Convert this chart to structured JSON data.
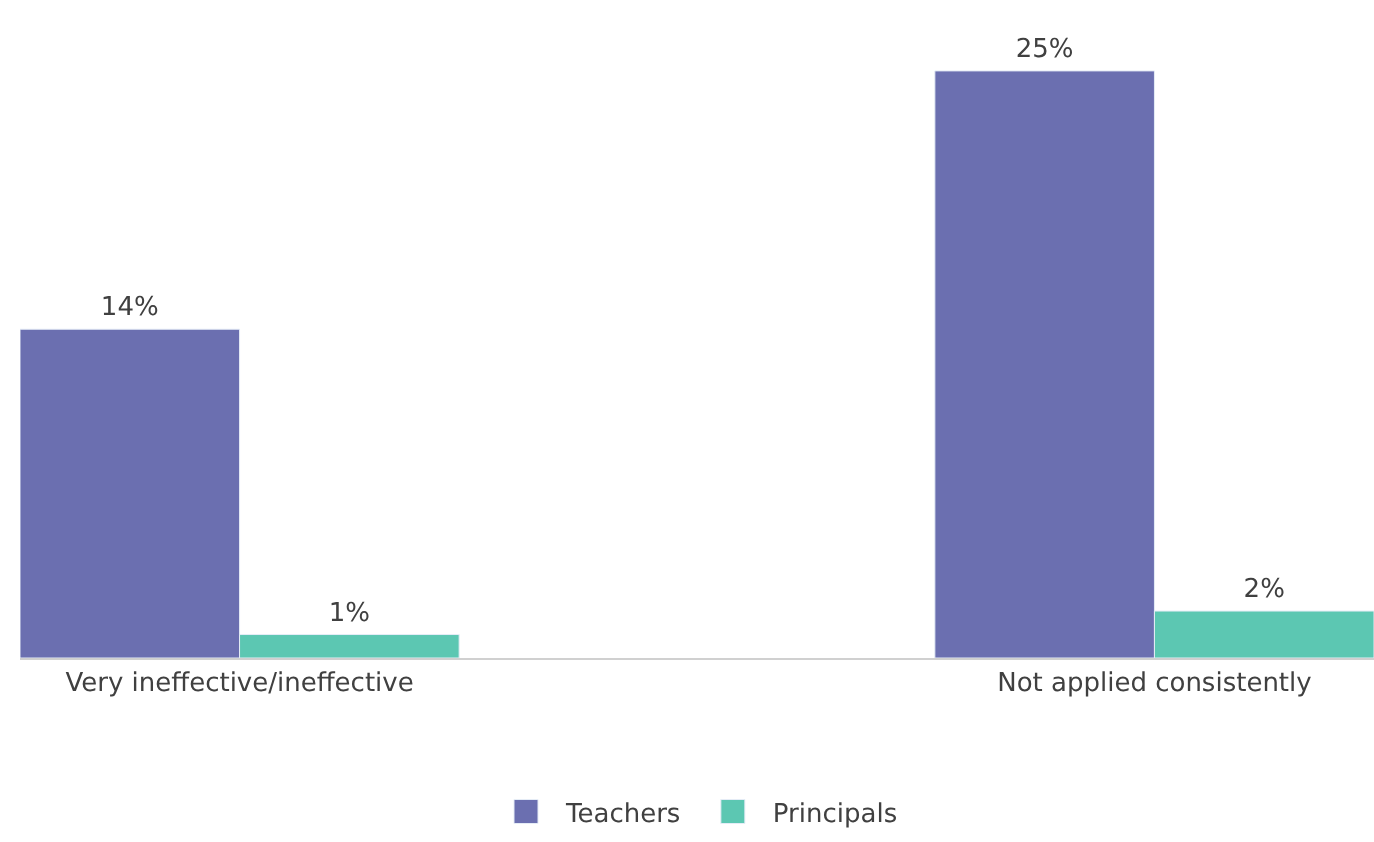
{
  "chart_data": {
    "type": "bar",
    "categories": [
      "Very ineffective/ineffective",
      "Not applied consistently"
    ],
    "series": [
      {
        "name": "Teachers",
        "color": "#6b6fb0",
        "values": [
          14,
          25
        ],
        "value_labels": [
          "14%",
          "25%"
        ]
      },
      {
        "name": "Principals",
        "color": "#5cc7b2",
        "values": [
          1,
          2
        ],
        "value_labels": [
          "1%",
          "2%"
        ]
      }
    ],
    "legend": "bottom"
  }
}
